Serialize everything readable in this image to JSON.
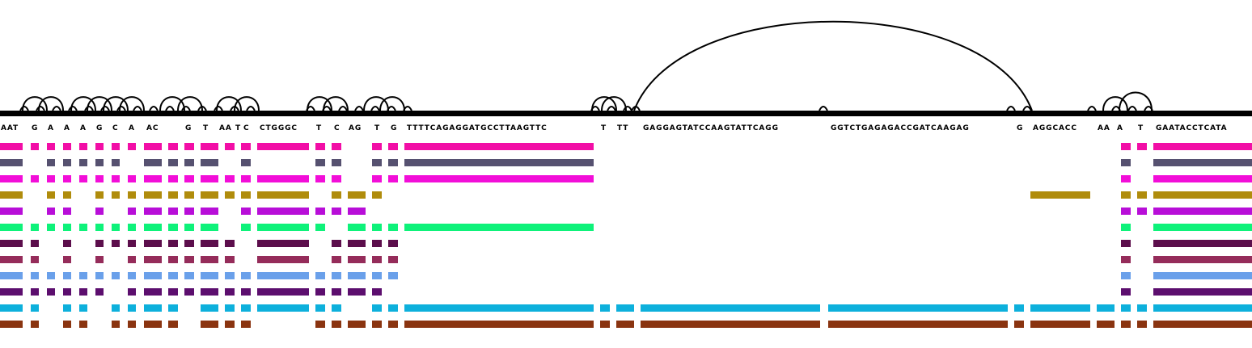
{
  "sequence_labels": [
    "AAT",
    "G",
    "A",
    "A",
    "A",
    "G",
    "C",
    "A",
    "AC",
    "G",
    "T",
    "AA",
    "T",
    "C",
    "CTGGGC",
    "T",
    "C",
    "AG",
    "T",
    "G",
    "TTTTCAGAGGATGCCTTAAGTTC",
    "T",
    "TT",
    "GAGGAGTATCCAAGTATTCAGG",
    "GGTCTGAGAGACCGATCAAGAG",
    "G",
    "AGGCACC",
    "AA",
    "A",
    "T",
    "GAATACCTCATA"
  ],
  "track_colors": [
    "#f20ea6",
    "#565170",
    "#f20ed8",
    "#b08c0c",
    "#b80ed8",
    "#0ef27a",
    "#5c0e4c",
    "#952c5a",
    "#6aa0ea",
    "#5c0e6e",
    "#0db0dc",
    "#8a3410"
  ],
  "coverage": [
    "1111111111111111101110000000111011",
    "1011111011110101101110000000101101",
    "1111111111111111101110000000101101",
    "1011011111111110111000000010111011",
    "1011010111110111110000000000111011",
    "1111111111110111011110000000101101",
    "1101011111111010111100000000101101",
    "1101010111111010111100000000101101",
    "1111111111111111111100000000101101",
    "1111110111111111111000000000101111",
    "1101101111011111101111111111111011",
    "1101101111011101111111111111111011"
  ],
  "icons": [
    "arc-icon",
    "node-bump-icon"
  ]
}
